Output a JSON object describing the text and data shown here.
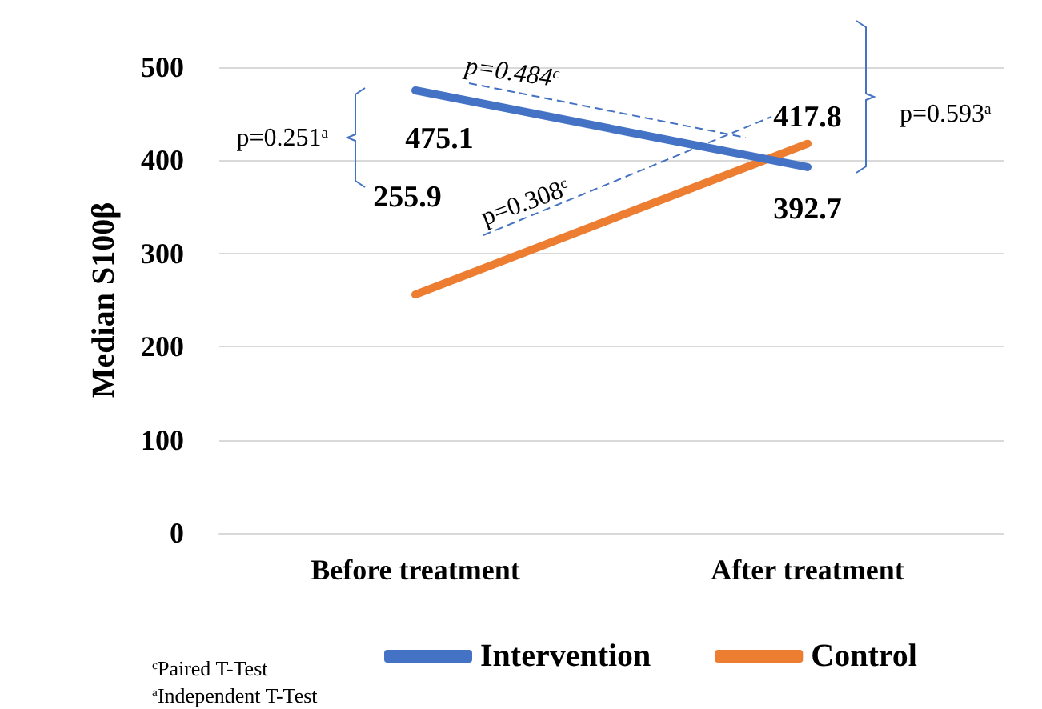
{
  "chart_data": {
    "type": "line",
    "ylabel": "Median S100β",
    "categories": [
      "Before treatment",
      "After treatment"
    ],
    "series": [
      {
        "name": "Intervention",
        "color": "#4472c4",
        "values": [
          475.1,
          392.7
        ]
      },
      {
        "name": "Control",
        "color": "#ed7d31",
        "values": [
          255.9,
          417.8
        ]
      }
    ],
    "ylim": [
      0,
      500
    ],
    "yticks": [
      0,
      100,
      200,
      300,
      400,
      500
    ],
    "grid": "y",
    "legend": "bottom",
    "marker": "none",
    "line_style": "solid",
    "data_labels": true,
    "annotations": [
      "p=0.251$^{a}$",
      "p=0.593$^{a}$",
      "p=0.484$^{c}$",
      "p=0.308$^{c}$",
      "$^{c}$Paired T-Test",
      "$^{a}$Independent T-Test"
    ]
  }
}
